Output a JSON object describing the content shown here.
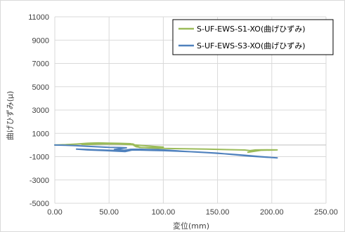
{
  "chart_data": {
    "type": "line",
    "title": "",
    "xlabel": "変位(mm)",
    "ylabel": "曲げひずみ(μ)",
    "xlim": [
      0,
      250
    ],
    "ylim": [
      -5000,
      11000
    ],
    "xticks": [
      0,
      50,
      100,
      150,
      200,
      250
    ],
    "yticks": [
      -5000,
      -3000,
      -1000,
      1000,
      3000,
      5000,
      7000,
      9000,
      11000
    ],
    "xtick_labels": [
      "0.00",
      "50.00",
      "100.00",
      "150.00",
      "200.00",
      "250.00"
    ],
    "ytick_labels": [
      "-5000",
      "-3000",
      "-1000",
      "1000",
      "3000",
      "5000",
      "7000",
      "9000",
      "11000"
    ],
    "grid": true,
    "legend_position": "top-right",
    "series": [
      {
        "name": "S-UF-EWS-S1-XO(曲げひずみ)",
        "color": "#9BBB59",
        "points": [
          [
            0,
            0
          ],
          [
            10,
            30
          ],
          [
            20,
            80
          ],
          [
            30,
            150
          ],
          [
            40,
            180
          ],
          [
            50,
            160
          ],
          [
            60,
            140
          ],
          [
            70,
            110
          ],
          [
            75,
            -150
          ],
          [
            80,
            -220
          ],
          [
            90,
            -230
          ],
          [
            100,
            -250
          ],
          [
            100,
            -180
          ],
          [
            90,
            -110
          ],
          [
            80,
            -40
          ],
          [
            70,
            30
          ],
          [
            60,
            80
          ],
          [
            50,
            100
          ],
          [
            40,
            80
          ],
          [
            30,
            40
          ],
          [
            25,
            60
          ],
          [
            35,
            120
          ],
          [
            45,
            140
          ],
          [
            55,
            130
          ],
          [
            65,
            110
          ],
          [
            72,
            90
          ],
          [
            78,
            -200
          ],
          [
            90,
            -260
          ],
          [
            105,
            -300
          ],
          [
            120,
            -320
          ],
          [
            140,
            -350
          ],
          [
            160,
            -400
          ],
          [
            175,
            -430
          ],
          [
            180,
            -480
          ],
          [
            185,
            -420
          ],
          [
            195,
            -410
          ],
          [
            205,
            -420
          ],
          [
            190,
            -450
          ],
          [
            178,
            -620
          ]
        ]
      },
      {
        "name": "S-UF-EWS-S3-XO(曲げひずみ)",
        "color": "#4F81BD",
        "points": [
          [
            0,
            0
          ],
          [
            10,
            -20
          ],
          [
            20,
            -60
          ],
          [
            30,
            -110
          ],
          [
            40,
            -160
          ],
          [
            50,
            -200
          ],
          [
            60,
            -220
          ],
          [
            66,
            -240
          ],
          [
            60,
            -320
          ],
          [
            55,
            -380
          ],
          [
            58,
            -420
          ],
          [
            64,
            -450
          ],
          [
            70,
            -370
          ],
          [
            78,
            -360
          ],
          [
            85,
            -380
          ],
          [
            95,
            -400
          ],
          [
            105,
            -450
          ],
          [
            120,
            -550
          ],
          [
            140,
            -650
          ],
          [
            160,
            -780
          ],
          [
            175,
            -880
          ],
          [
            190,
            -1000
          ],
          [
            205,
            -1100
          ],
          [
            200,
            -1080
          ],
          [
            180,
            -950
          ],
          [
            150,
            -700
          ],
          [
            130,
            -600
          ],
          [
            110,
            -520
          ],
          [
            100,
            -480
          ],
          [
            95,
            -470
          ],
          [
            85,
            -450
          ],
          [
            75,
            -430
          ],
          [
            68,
            -440
          ],
          [
            60,
            -480
          ],
          [
            50,
            -450
          ],
          [
            40,
            -420
          ],
          [
            30,
            -380
          ],
          [
            20,
            -350
          ],
          [
            30,
            -420
          ],
          [
            45,
            -470
          ],
          [
            55,
            -520
          ],
          [
            65,
            -560
          ],
          [
            72,
            -420
          ]
        ]
      }
    ]
  }
}
